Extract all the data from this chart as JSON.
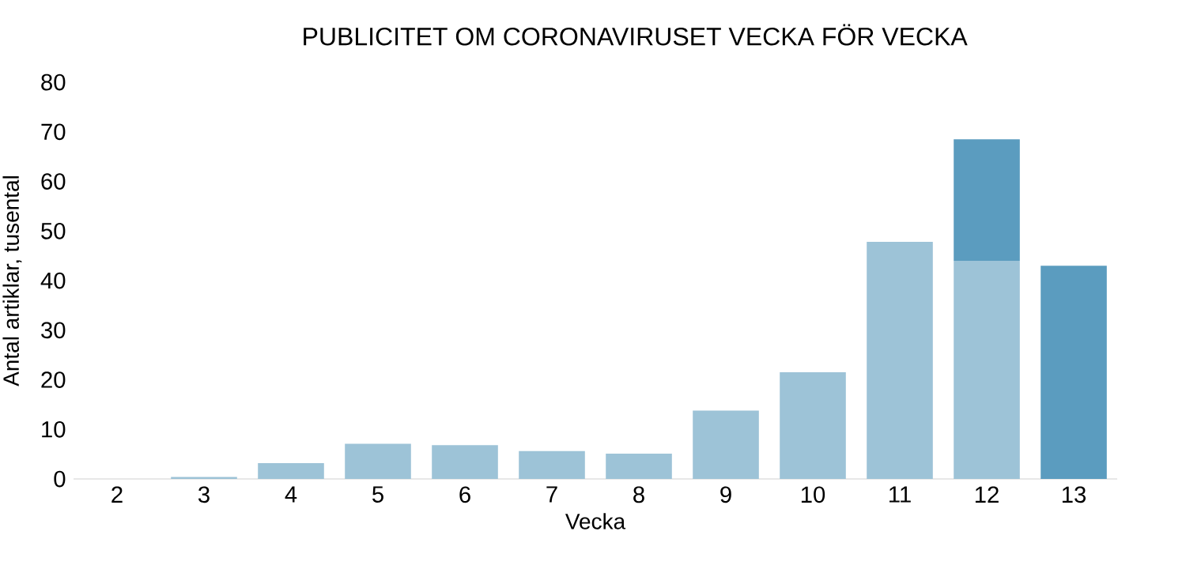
{
  "chart_data": {
    "type": "bar",
    "title": "PUBLICITET OM CORONAVIRUSET VECKA FÖR VECKA",
    "xlabel": "Vecka",
    "ylabel": "Antal artiklar, tusental",
    "categories": [
      "2",
      "3",
      "4",
      "5",
      "6",
      "7",
      "8",
      "9",
      "10",
      "11",
      "12",
      "13"
    ],
    "stacked": true,
    "series": [
      {
        "color": "#9dc3d7",
        "values": [
          0,
          0.4,
          3.2,
          7.1,
          6.8,
          5.6,
          5.1,
          13.8,
          21.5,
          47.8,
          44,
          null
        ]
      },
      {
        "color": "#5b9cbf",
        "values": [
          null,
          null,
          null,
          null,
          null,
          null,
          null,
          null,
          null,
          null,
          24.5,
          43
        ]
      }
    ],
    "ylim": [
      0,
      80
    ],
    "yticks": [
      0,
      10,
      20,
      30,
      40,
      50,
      60,
      70,
      80
    ]
  }
}
